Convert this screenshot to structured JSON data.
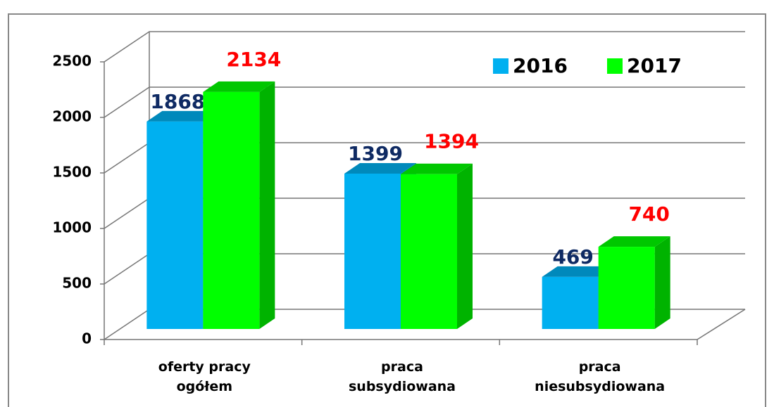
{
  "chart_data": {
    "type": "bar3d",
    "categories": [
      "oferty pracy ogółem",
      "praca subsydiowana",
      "praca niesubsydiowana"
    ],
    "series": [
      {
        "name": "2016",
        "color": "#00b0f0",
        "label_color": "#0f2a63",
        "values": [
          1868,
          1399,
          469
        ]
      },
      {
        "name": "2017",
        "color": "#00ff00",
        "label_color": "#ff0000",
        "values": [
          2134,
          1394,
          740
        ]
      }
    ],
    "ylim": [
      0,
      2500
    ],
    "yticks": [
      0,
      500,
      1000,
      1500,
      2000,
      2500
    ],
    "grid": true,
    "legend": "top-right"
  }
}
